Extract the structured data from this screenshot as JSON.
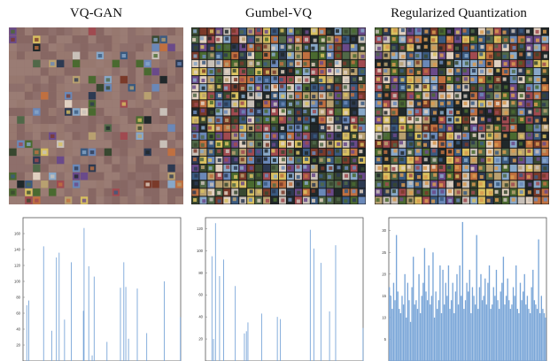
{
  "panels": [
    {
      "title": "VQ-GAN",
      "mosaic": "sparse"
    },
    {
      "title": "Gumbel-VQ",
      "mosaic": "dense"
    },
    {
      "title": "Regularized Quantization",
      "mosaic": "dense-warm"
    }
  ],
  "colors": {
    "bar": "#7aa6d8",
    "frame": "#555555",
    "placeholder_tile": "#8e6f6b",
    "tile_palette": [
      "#2d3a52",
      "#6a88b8",
      "#b8a070",
      "#4a6a30",
      "#c8c0b8",
      "#7a3a2a",
      "#d8c060",
      "#3a5a80",
      "#a04a50",
      "#20282a",
      "#88a8c8",
      "#c07040",
      "#506848",
      "#e0d0c0",
      "#6a4a8a",
      "#384830"
    ]
  },
  "chart_data": [
    {
      "type": "bar",
      "title": "",
      "xlabel": "",
      "ylabel": "",
      "ylim": [
        0,
        180
      ],
      "yticks": [
        20,
        40,
        60,
        80,
        100,
        120,
        140,
        160
      ],
      "series": [
        {
          "values": [
            0,
            0,
            0,
            0,
            0,
            70,
            0,
            0,
            76,
            0,
            0,
            0,
            0,
            0,
            0,
            0,
            0,
            0,
            0,
            0,
            0,
            0,
            0,
            0,
            0,
            0,
            0,
            0,
            0,
            0,
            144,
            0,
            0,
            0,
            0,
            0,
            0,
            0,
            0,
            0,
            0,
            0,
            38,
            0,
            0,
            0,
            0,
            0,
            0,
            130,
            0,
            0,
            0,
            136,
            0,
            0,
            0,
            0,
            0,
            0,
            0,
            52,
            0,
            0,
            0,
            0,
            0,
            0,
            0,
            0,
            0,
            124,
            0,
            0,
            0,
            0,
            0,
            0,
            0,
            0,
            0,
            0,
            0,
            0,
            0,
            0,
            0,
            0,
            0,
            63,
            167,
            0,
            0,
            0,
            0,
            0,
            0,
            119,
            0,
            0,
            0,
            0,
            7,
            0,
            0,
            106,
            0,
            0,
            0,
            0,
            0,
            0,
            0,
            0,
            0,
            0,
            0,
            0,
            0,
            0,
            0,
            0,
            0,
            0,
            24,
            0,
            0,
            0,
            0,
            0,
            0,
            0,
            0,
            0,
            0,
            0,
            0,
            0,
            0,
            0,
            0,
            0,
            0,
            0,
            92,
            0,
            0,
            0,
            0,
            124,
            0,
            0,
            93,
            0,
            0,
            0,
            28,
            0,
            0,
            0,
            0,
            0,
            0,
            0,
            0,
            0,
            0,
            0,
            0,
            91,
            0,
            0,
            0,
            0,
            0,
            0,
            0,
            0,
            0,
            0,
            0,
            0,
            0,
            35,
            0,
            0,
            0,
            0,
            0,
            0,
            0,
            0,
            0,
            0,
            0,
            0,
            0,
            0,
            0,
            0,
            0,
            0,
            0,
            0,
            0,
            0,
            0,
            0,
            0,
            100,
            0,
            0,
            0,
            0,
            0,
            0,
            0,
            0,
            0,
            0,
            0,
            0,
            0,
            0,
            0,
            0,
            0,
            0,
            0,
            0,
            0,
            0,
            0,
            55
          ]
        }
      ]
    },
    {
      "type": "bar",
      "title": "",
      "xlabel": "",
      "ylabel": "",
      "ylim": [
        0,
        130
      ],
      "yticks": [
        20,
        40,
        60,
        80,
        100,
        120
      ],
      "series": [
        {
          "values": [
            0,
            0,
            0,
            0,
            0,
            0,
            0,
            0,
            0,
            0,
            0,
            0,
            95,
            0,
            0,
            20,
            0,
            0,
            0,
            125,
            0,
            0,
            0,
            0,
            0,
            0,
            0,
            77,
            0,
            0,
            0,
            0,
            0,
            0,
            0,
            92,
            0,
            0,
            0,
            0,
            0,
            0,
            0,
            0,
            0,
            0,
            0,
            0,
            0,
            0,
            0,
            0,
            0,
            0,
            0,
            0,
            0,
            0,
            68,
            0,
            0,
            0,
            0,
            0,
            0,
            0,
            0,
            0,
            0,
            0,
            0,
            0,
            0,
            0,
            0,
            0,
            25,
            0,
            0,
            0,
            27,
            0,
            0,
            35,
            0,
            0,
            0,
            0,
            0,
            0,
            0,
            0,
            0,
            0,
            0,
            0,
            0,
            0,
            0,
            0,
            0,
            0,
            0,
            0,
            0,
            0,
            0,
            0,
            0,
            0,
            43,
            0,
            0,
            0,
            0,
            0,
            0,
            0,
            0,
            0,
            0,
            0,
            0,
            0,
            0,
            0,
            0,
            0,
            0,
            0,
            0,
            0,
            0,
            0,
            0,
            0,
            0,
            0,
            0,
            0,
            0,
            40,
            0,
            0,
            0,
            0,
            0,
            38,
            0,
            0,
            0,
            0,
            0,
            0,
            0,
            0,
            0,
            0,
            0,
            0,
            0,
            0,
            0,
            0,
            0,
            0,
            0,
            0,
            0,
            0,
            0,
            0,
            0,
            0,
            0,
            0,
            0,
            0,
            0,
            0,
            0,
            0,
            0,
            0,
            0,
            0,
            0,
            0,
            0,
            0,
            0,
            0,
            0,
            0,
            0,
            0,
            0,
            0,
            0,
            0,
            0,
            0,
            0,
            0,
            0,
            0,
            119,
            0,
            0,
            0,
            0,
            0,
            0,
            102,
            0,
            0,
            0,
            0,
            0,
            0,
            0,
            0,
            0,
            0,
            0,
            0,
            0,
            89,
            0,
            0,
            0,
            0,
            0,
            0,
            0,
            0,
            0,
            0,
            0,
            0,
            0,
            0,
            0,
            0,
            45,
            0,
            0,
            0,
            0,
            0,
            0,
            0,
            0,
            0,
            0,
            0,
            105,
            0,
            0,
            0,
            0,
            0,
            0,
            0,
            0,
            0,
            0,
            0,
            0,
            0,
            0,
            0,
            0,
            0,
            0,
            0,
            0,
            0,
            0,
            0,
            0,
            0,
            0,
            0,
            0,
            0,
            0,
            0,
            0,
            0,
            0,
            0,
            0,
            0,
            0,
            0,
            0,
            0,
            0,
            0,
            0,
            0,
            0,
            0,
            0,
            0,
            0,
            0,
            0,
            0,
            30
          ]
        }
      ]
    },
    {
      "type": "bar",
      "title": "",
      "xlabel": "",
      "ylabel": "",
      "ylim": [
        0,
        33
      ],
      "yticks": [
        5,
        10,
        15,
        20,
        25,
        30
      ],
      "series": [
        {
          "values": [
            17,
            15,
            12,
            18,
            14,
            29,
            16,
            12,
            11,
            15,
            13,
            20,
            10,
            18,
            14,
            9,
            17,
            24,
            13,
            14,
            12,
            20,
            11,
            15,
            18,
            26,
            16,
            14,
            22,
            13,
            15,
            25,
            10,
            16,
            12,
            14,
            22,
            11,
            21,
            13,
            18,
            15,
            22,
            12,
            14,
            18,
            11,
            16,
            20,
            13,
            22,
            15,
            32,
            12,
            14,
            18,
            16,
            21,
            11,
            17,
            15,
            13,
            29,
            12,
            17,
            20,
            14,
            15,
            19,
            13,
            18,
            22,
            12,
            13,
            17,
            15,
            21,
            14,
            12,
            16,
            18,
            24,
            13,
            15,
            19,
            14,
            12,
            13,
            17,
            15,
            22,
            12,
            11,
            18,
            14,
            16,
            20,
            13,
            15,
            12,
            11,
            17,
            21,
            14,
            13,
            12,
            28,
            11,
            15,
            12,
            11,
            10
          ]
        }
      ]
    }
  ]
}
